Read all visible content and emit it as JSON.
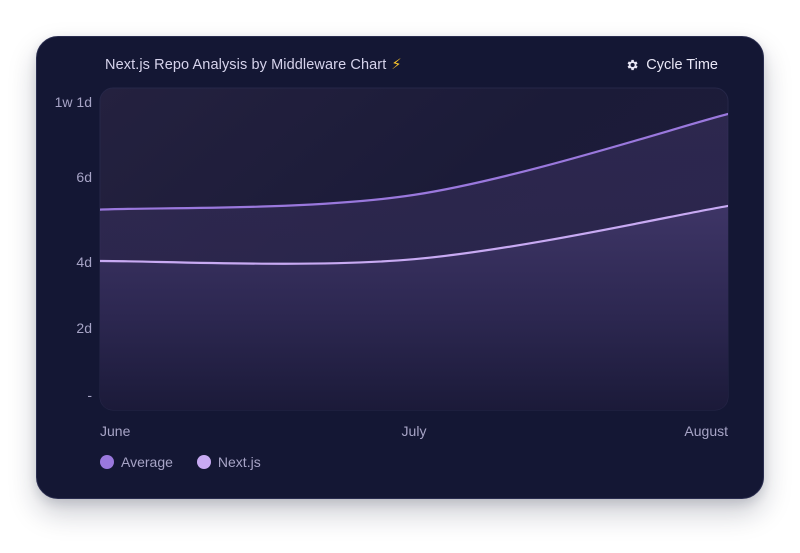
{
  "header": {
    "title": "Next.js Repo Analysis by Middleware Chart",
    "title_emoji": "⚡",
    "metric_label": "Cycle Time",
    "metric_icon": "gear-icon"
  },
  "colors": {
    "card_bg": "#141734",
    "average": "#9a78dd",
    "nextjs": "#c8aaf3",
    "text_muted": "#a7a4c6"
  },
  "chart_data": {
    "type": "area",
    "title": "Next.js Repo Analysis by Middleware Chart",
    "categories": [
      "June",
      "July",
      "August"
    ],
    "y_ticks": [
      "-",
      "2d",
      "4d",
      "6d",
      "1w 1d"
    ],
    "y_tick_values_days": [
      0,
      2,
      4,
      6,
      8
    ],
    "ylim_days": [
      0,
      8
    ],
    "y_unit": "days",
    "grid": false,
    "legend_position": "bottom-left",
    "series": [
      {
        "name": "Average",
        "color": "#9a78dd",
        "values_days": [
          5.1,
          5.5,
          7.7
        ]
      },
      {
        "name": "Next.js",
        "color": "#c8aaf3",
        "values_days": [
          3.7,
          3.75,
          5.2
        ]
      }
    ]
  },
  "legend": [
    {
      "label": "Average",
      "color": "#9a78dd"
    },
    {
      "label": "Next.js",
      "color": "#c8aaf3"
    }
  ]
}
